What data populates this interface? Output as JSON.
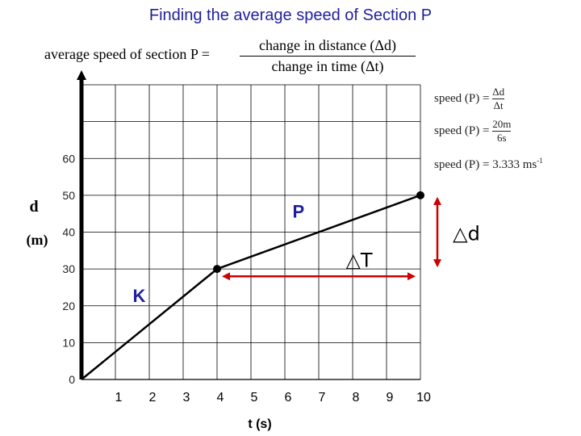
{
  "title": "Finding the average speed of Section P",
  "formula": {
    "lhs": "average speed of section P =",
    "numerator": "change  in distance (Δd)",
    "denominator": "change in time (Δt)"
  },
  "side_calc": {
    "line1_lhs": "speed (P) =",
    "line1_num": "Δd",
    "line1_den": "Δt",
    "line2_lhs": "speed (P) =",
    "line2_num": "20m",
    "line2_den": "6s",
    "line3": "speed (P) = 3.333 ms",
    "line3_sup": "-1"
  },
  "chart_data": {
    "type": "line",
    "xlabel": "t (s)",
    "ylabel_line1": "d",
    "ylabel_line2": "(m)",
    "xlim": [
      0,
      10
    ],
    "ylim": [
      0,
      80
    ],
    "x_ticks": [
      1,
      2,
      3,
      4,
      5,
      6,
      7,
      8,
      9,
      10
    ],
    "y_ticks": [
      0,
      10,
      20,
      30,
      40,
      50,
      60
    ],
    "grid": true,
    "series": [
      {
        "x": [
          0,
          4,
          10
        ],
        "y": [
          0,
          30,
          50
        ]
      }
    ],
    "labeled_points": [
      {
        "x": 4,
        "y": 30
      },
      {
        "x": 10,
        "y": 50
      }
    ],
    "section_labels": [
      {
        "text": "K",
        "x": 1.7,
        "y": 21
      },
      {
        "text": "P",
        "x": 6.4,
        "y": 44
      }
    ],
    "annotations": {
      "delta_t": {
        "text": "△T",
        "x_from": 4,
        "x_to": 10,
        "y": 28
      },
      "delta_d": {
        "text": "△d",
        "x": 10.5,
        "y_from": 30,
        "y_to": 50
      }
    },
    "colors": {
      "line": "#000000",
      "arrow": "#cc0000",
      "grid": "#000000"
    }
  }
}
